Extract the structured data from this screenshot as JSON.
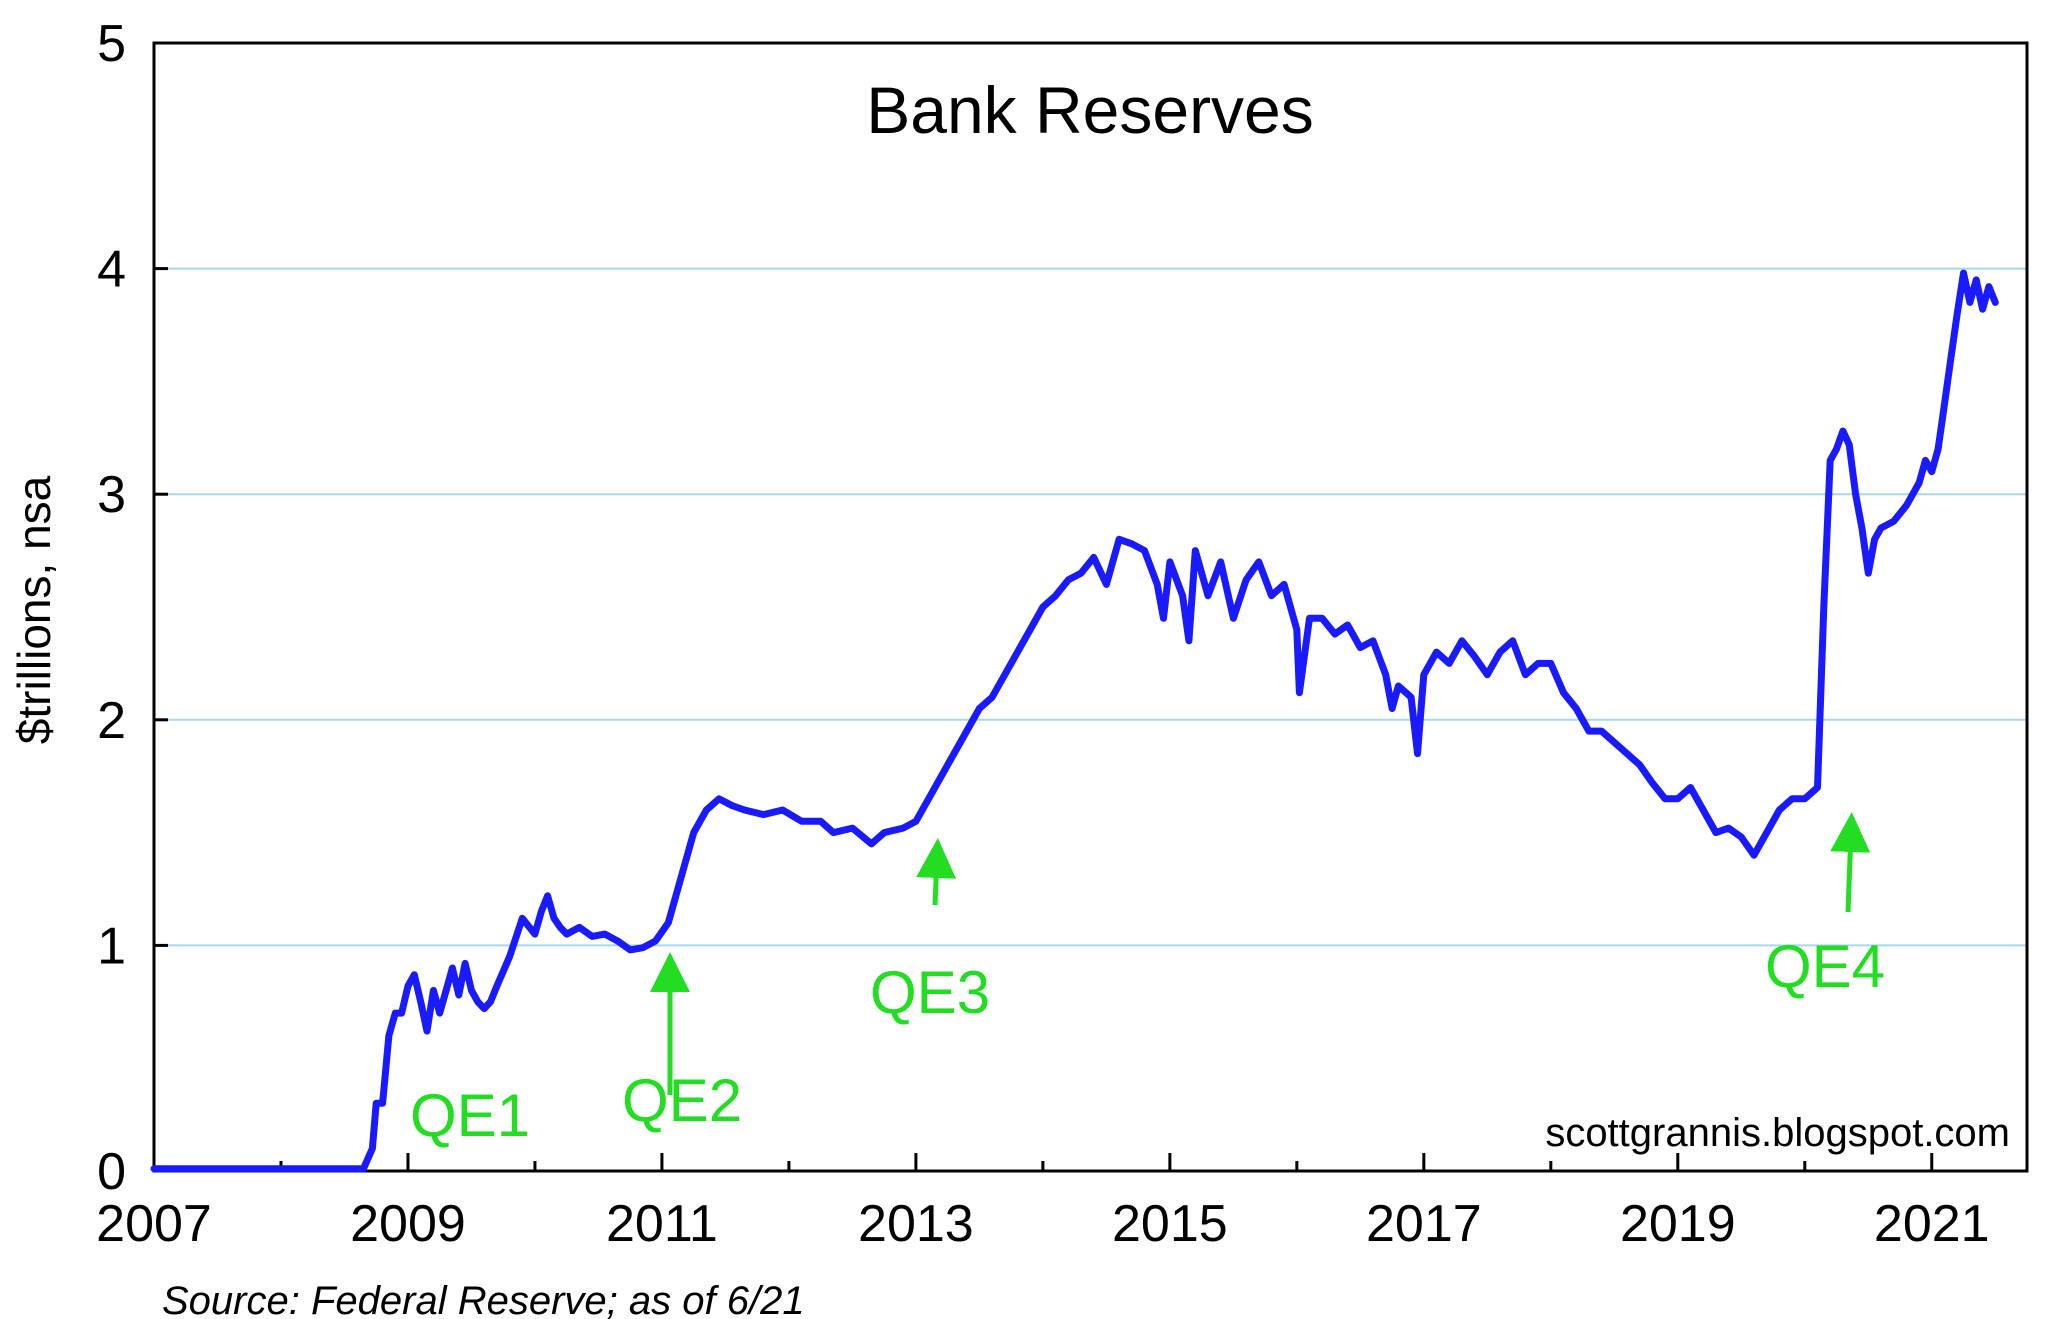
{
  "chart_data": {
    "type": "line",
    "title": "Bank Reserves",
    "ylabel": "$trillions, nsa",
    "xlim": [
      2007,
      2021.75
    ],
    "ylim": [
      0,
      5
    ],
    "x_ticks": [
      2007,
      2009,
      2011,
      2013,
      2015,
      2017,
      2019,
      2021
    ],
    "y_ticks": [
      0,
      1,
      2,
      3,
      4,
      5
    ],
    "grid": "horizontal",
    "colors": {
      "line": "#1a1aff",
      "grid": "#a8d8ee",
      "annotation": "#22dd22"
    },
    "series": [
      {
        "x": [
          2007.0,
          2007.5,
          2008.0,
          2008.5,
          2008.65,
          2008.72,
          2008.75,
          2008.8,
          2008.85,
          2008.9,
          2008.95,
          2009.0,
          2009.05,
          2009.1,
          2009.15,
          2009.2,
          2009.25,
          2009.3,
          2009.35,
          2009.4,
          2009.45,
          2009.5,
          2009.55,
          2009.6,
          2009.65,
          2009.7,
          2009.8,
          2009.9,
          2010.0,
          2010.05,
          2010.1,
          2010.15,
          2010.2,
          2010.25,
          2010.35,
          2010.45,
          2010.55,
          2010.65,
          2010.75,
          2010.85,
          2010.95,
          2011.05,
          2011.15,
          2011.25,
          2011.35,
          2011.45,
          2011.55,
          2011.65,
          2011.8,
          2011.95,
          2012.1,
          2012.25,
          2012.35,
          2012.5,
          2012.65,
          2012.75,
          2012.9,
          2013.0,
          2013.1,
          2013.2,
          2013.3,
          2013.4,
          2013.5,
          2013.6,
          2013.7,
          2013.8,
          2013.9,
          2014.0,
          2014.1,
          2014.2,
          2014.3,
          2014.4,
          2014.5,
          2014.6,
          2014.7,
          2014.8,
          2014.9,
          2014.95,
          2015.0,
          2015.1,
          2015.15,
          2015.2,
          2015.3,
          2015.4,
          2015.5,
          2015.6,
          2015.7,
          2015.8,
          2015.9,
          2016.0,
          2016.02,
          2016.1,
          2016.2,
          2016.3,
          2016.4,
          2016.5,
          2016.6,
          2016.7,
          2016.75,
          2016.8,
          2016.9,
          2016.95,
          2017.0,
          2017.1,
          2017.2,
          2017.3,
          2017.4,
          2017.5,
          2017.6,
          2017.7,
          2017.8,
          2017.9,
          2018.0,
          2018.1,
          2018.2,
          2018.3,
          2018.4,
          2018.5,
          2018.6,
          2018.7,
          2018.8,
          2018.9,
          2019.0,
          2019.1,
          2019.2,
          2019.3,
          2019.4,
          2019.5,
          2019.6,
          2019.7,
          2019.8,
          2019.9,
          2020.0,
          2020.1,
          2020.15,
          2020.2,
          2020.25,
          2020.3,
          2020.35,
          2020.4,
          2020.45,
          2020.5,
          2020.55,
          2020.6,
          2020.7,
          2020.8,
          2020.9,
          2020.95,
          2021.0,
          2021.05,
          2021.1,
          2021.15,
          2021.2,
          2021.25,
          2021.3,
          2021.35,
          2021.4,
          2021.45,
          2021.5
        ],
        "y": [
          0.01,
          0.01,
          0.01,
          0.01,
          0.01,
          0.1,
          0.3,
          0.3,
          0.6,
          0.7,
          0.7,
          0.82,
          0.87,
          0.75,
          0.62,
          0.8,
          0.7,
          0.8,
          0.9,
          0.78,
          0.92,
          0.8,
          0.75,
          0.72,
          0.75,
          0.82,
          0.95,
          1.12,
          1.05,
          1.15,
          1.22,
          1.12,
          1.08,
          1.05,
          1.08,
          1.04,
          1.05,
          1.02,
          0.98,
          0.99,
          1.02,
          1.1,
          1.3,
          1.5,
          1.6,
          1.65,
          1.62,
          1.6,
          1.58,
          1.6,
          1.55,
          1.55,
          1.5,
          1.52,
          1.45,
          1.5,
          1.52,
          1.55,
          1.65,
          1.75,
          1.85,
          1.95,
          2.05,
          2.1,
          2.2,
          2.3,
          2.4,
          2.5,
          2.55,
          2.62,
          2.65,
          2.72,
          2.6,
          2.8,
          2.78,
          2.75,
          2.6,
          2.45,
          2.7,
          2.55,
          2.35,
          2.75,
          2.55,
          2.7,
          2.45,
          2.62,
          2.7,
          2.55,
          2.6,
          2.4,
          2.12,
          2.45,
          2.45,
          2.38,
          2.42,
          2.32,
          2.35,
          2.2,
          2.05,
          2.15,
          2.1,
          1.85,
          2.2,
          2.3,
          2.25,
          2.35,
          2.28,
          2.2,
          2.3,
          2.35,
          2.2,
          2.25,
          2.25,
          2.12,
          2.05,
          1.95,
          1.95,
          1.9,
          1.85,
          1.8,
          1.72,
          1.65,
          1.65,
          1.7,
          1.6,
          1.5,
          1.52,
          1.48,
          1.4,
          1.5,
          1.6,
          1.65,
          1.65,
          1.7,
          2.5,
          3.15,
          3.2,
          3.28,
          3.22,
          3.0,
          2.85,
          2.65,
          2.8,
          2.85,
          2.88,
          2.95,
          3.05,
          3.15,
          3.1,
          3.2,
          3.4,
          3.6,
          3.8,
          3.98,
          3.85,
          3.95,
          3.82,
          3.92,
          3.85
        ]
      }
    ],
    "annotations": [
      {
        "label": "QE1"
      },
      {
        "label": "QE2",
        "x": 2011.0,
        "y": 1.0
      },
      {
        "label": "QE3",
        "x": 2013.1,
        "y": 1.42
      },
      {
        "label": "QE4",
        "x": 2020.15,
        "y": 1.58
      }
    ],
    "watermark": "scottgrannis.blogspot.com",
    "source": "Source: Federal Reserve; as of 6/21"
  }
}
